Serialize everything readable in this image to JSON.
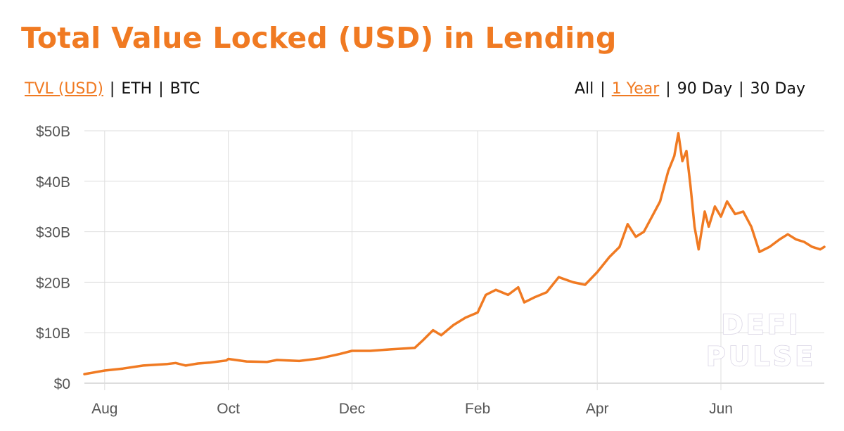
{
  "header": {
    "title": "Total Value Locked (USD) in Lending",
    "metric_options": [
      "TVL (USD)",
      "ETH",
      "BTC"
    ],
    "metric_active_index": 0,
    "range_options": [
      "All",
      "1 Year",
      "90 Day",
      "30 Day"
    ],
    "range_active_index": 1
  },
  "watermark": {
    "line1": "DEFI",
    "line2": "PULSE"
  },
  "colors": {
    "accent": "#f07a22",
    "line": "#f07a22",
    "grid": "#dddddd"
  },
  "chart_data": {
    "type": "line",
    "title": "Total Value Locked (USD) in Lending",
    "xlabel": "",
    "ylabel": "",
    "x_range": [
      "2020-07-22",
      "2021-07-22"
    ],
    "ylim": [
      0,
      50
    ],
    "y_ticks": [
      0,
      10,
      20,
      30,
      40,
      50
    ],
    "y_tick_labels": [
      "$0",
      "$10B",
      "$20B",
      "$30B",
      "$40B",
      "$50B"
    ],
    "x_ticks": [
      "2020-08-01",
      "2020-10-01",
      "2020-12-01",
      "2021-02-01",
      "2021-04-01",
      "2021-06-01"
    ],
    "x_tick_labels": [
      "Aug",
      "Oct",
      "Dec",
      "Feb",
      "Apr",
      "Jun"
    ],
    "grid": true,
    "legend": "none",
    "series": [
      {
        "unit": "USD billions",
        "points": [
          [
            "2020-07-22",
            1.8
          ],
          [
            "2020-08-01",
            2.5
          ],
          [
            "2020-08-10",
            2.9
          ],
          [
            "2020-08-20",
            3.5
          ],
          [
            "2020-09-01",
            3.8
          ],
          [
            "2020-09-05",
            4.0
          ],
          [
            "2020-09-10",
            3.5
          ],
          [
            "2020-09-16",
            3.9
          ],
          [
            "2020-09-22",
            4.1
          ],
          [
            "2020-09-30",
            4.5
          ],
          [
            "2020-10-01",
            4.8
          ],
          [
            "2020-10-10",
            4.3
          ],
          [
            "2020-10-20",
            4.2
          ],
          [
            "2020-10-25",
            4.6
          ],
          [
            "2020-11-05",
            4.4
          ],
          [
            "2020-11-15",
            4.9
          ],
          [
            "2020-11-25",
            5.8
          ],
          [
            "2020-12-01",
            6.4
          ],
          [
            "2020-12-10",
            6.4
          ],
          [
            "2020-12-20",
            6.7
          ],
          [
            "2021-01-01",
            7.0
          ],
          [
            "2021-01-05",
            8.5
          ],
          [
            "2021-01-10",
            10.5
          ],
          [
            "2021-01-14",
            9.5
          ],
          [
            "2021-01-20",
            11.5
          ],
          [
            "2021-01-26",
            13.0
          ],
          [
            "2021-02-01",
            14.0
          ],
          [
            "2021-02-05",
            17.5
          ],
          [
            "2021-02-10",
            18.5
          ],
          [
            "2021-02-16",
            17.5
          ],
          [
            "2021-02-21",
            19.0
          ],
          [
            "2021-02-24",
            16.0
          ],
          [
            "2021-03-01",
            17.0
          ],
          [
            "2021-03-07",
            18.0
          ],
          [
            "2021-03-13",
            21.0
          ],
          [
            "2021-03-20",
            20.0
          ],
          [
            "2021-03-26",
            19.5
          ],
          [
            "2021-04-01",
            22.0
          ],
          [
            "2021-04-07",
            25.0
          ],
          [
            "2021-04-12",
            27.0
          ],
          [
            "2021-04-16",
            31.5
          ],
          [
            "2021-04-20",
            29.0
          ],
          [
            "2021-04-24",
            30.0
          ],
          [
            "2021-04-28",
            33.0
          ],
          [
            "2021-05-02",
            36.0
          ],
          [
            "2021-05-06",
            42.0
          ],
          [
            "2021-05-09",
            45.0
          ],
          [
            "2021-05-11",
            49.5
          ],
          [
            "2021-05-13",
            44.0
          ],
          [
            "2021-05-15",
            46.0
          ],
          [
            "2021-05-17",
            39.0
          ],
          [
            "2021-05-19",
            31.0
          ],
          [
            "2021-05-21",
            26.5
          ],
          [
            "2021-05-24",
            34.0
          ],
          [
            "2021-05-26",
            31.0
          ],
          [
            "2021-05-29",
            35.0
          ],
          [
            "2021-06-01",
            33.0
          ],
          [
            "2021-06-04",
            36.0
          ],
          [
            "2021-06-08",
            33.5
          ],
          [
            "2021-06-12",
            34.0
          ],
          [
            "2021-06-16",
            31.0
          ],
          [
            "2021-06-20",
            26.0
          ],
          [
            "2021-06-25",
            27.0
          ],
          [
            "2021-06-30",
            28.5
          ],
          [
            "2021-07-04",
            29.5
          ],
          [
            "2021-07-08",
            28.5
          ],
          [
            "2021-07-12",
            28.0
          ],
          [
            "2021-07-16",
            27.0
          ],
          [
            "2021-07-20",
            26.5
          ],
          [
            "2021-07-22",
            27.0
          ]
        ]
      }
    ]
  }
}
